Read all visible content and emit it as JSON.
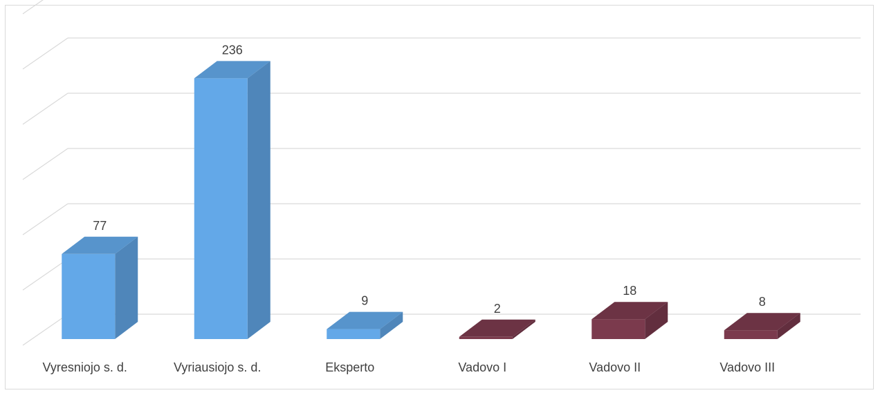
{
  "chart_data": {
    "type": "bar",
    "style": "3d-column",
    "categories": [
      "Vyresniojo s. d.",
      "Vyriausiojo s. d.",
      "Eksperto",
      "Vadovo I",
      "Vadovo II",
      "Vadovo III"
    ],
    "values": [
      77,
      236,
      9,
      2,
      18,
      8
    ],
    "data_labels": [
      "77",
      "236",
      "9",
      "2",
      "18",
      "8"
    ],
    "colors": [
      "#63a8e8",
      "#63a8e8",
      "#63a8e8",
      "#7b3a4d",
      "#7b3a4d",
      "#7b3a4d"
    ],
    "title": "",
    "xlabel": "",
    "ylabel": "",
    "ylim": [
      0,
      300
    ],
    "gridlines": true,
    "y_axis_tick_labels_visible": false,
    "legend": "none"
  }
}
